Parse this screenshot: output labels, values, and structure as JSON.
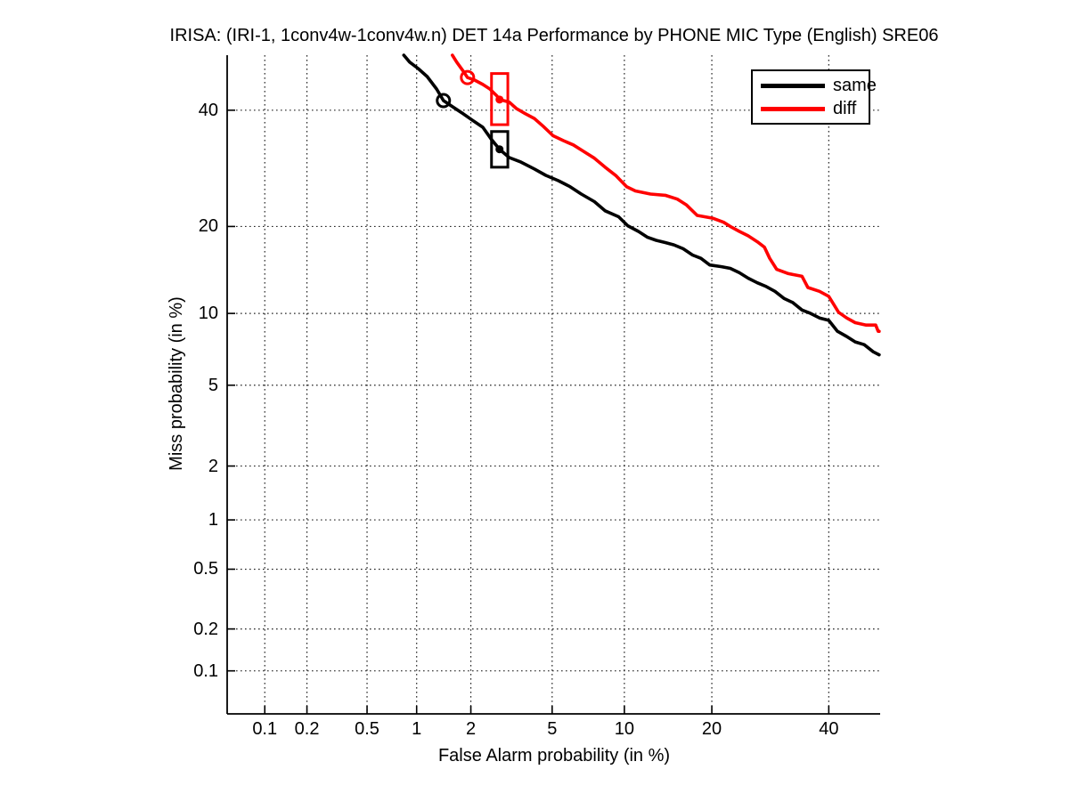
{
  "chart_data": {
    "type": "line",
    "variant": "DET-curve (probit-probit scale)",
    "title": "IRISA: (IRI-1, 1conv4w-1conv4w.n) DET 14a Performance by PHONE MIC Type (English) SRE06",
    "xlabel": "False Alarm probability (in %)",
    "ylabel": "Miss probability (in %)",
    "grid": true,
    "background": "#ffffff",
    "axis_color": "#000000",
    "grid_color": "#262626",
    "x_ticks": [
      0.1,
      0.2,
      0.5,
      1,
      2,
      5,
      10,
      20,
      40
    ],
    "x_tick_labels": [
      "0.1",
      "0.2",
      "0.5",
      "1",
      "2",
      "5",
      "10",
      "20",
      "40"
    ],
    "y_ticks": [
      0.1,
      0.2,
      0.5,
      1,
      2,
      5,
      10,
      20,
      40
    ],
    "y_tick_labels": [
      "0.1",
      "0.2",
      "0.5",
      "1",
      "2",
      "5",
      "10",
      "20",
      "40"
    ],
    "x_range": [
      0.052,
      50.2
    ],
    "y_range": [
      0.047,
      51.0
    ],
    "legend": {
      "position": "top-right",
      "entries": [
        {
          "label": "same",
          "color": "#000000"
        },
        {
          "label": "diff",
          "color": "#ff0000"
        }
      ]
    },
    "series": [
      {
        "name": "same",
        "color": "#000000",
        "fa": [
          0.84,
          0.91,
          1.02,
          1.15,
          1.3,
          1.42,
          1.59,
          1.82,
          2.03,
          2.31,
          2.56,
          2.81,
          3.14,
          3.58,
          4.14,
          4.68,
          5.33,
          6.0,
          6.7,
          7.6,
          8.4,
          9.5,
          10.3,
          11.3,
          12.2,
          13.1,
          14.1,
          15.1,
          16.2,
          17.4,
          18.5,
          19.7,
          21.4,
          22.7,
          24.1,
          25.5,
          27.0,
          28.5,
          30.0,
          31.6,
          33.2,
          34.9,
          36.5,
          38.2,
          40.0,
          41.7,
          43.5,
          45.2,
          47.0,
          48.8,
          50.0
        ],
        "miss": [
          51.0,
          49.6,
          48.3,
          46.7,
          44.2,
          41.9,
          40.7,
          39.3,
          38.1,
          36.7,
          34.4,
          32.6,
          31.1,
          30.3,
          29.1,
          28.0,
          27.1,
          26.1,
          24.9,
          23.7,
          22.3,
          21.4,
          20.1,
          19.3,
          18.5,
          18.1,
          17.8,
          17.5,
          17.0,
          16.2,
          15.8,
          15.0,
          14.8,
          14.6,
          14.1,
          13.5,
          13.0,
          12.6,
          12.1,
          11.4,
          11.0,
          10.3,
          10.0,
          9.6,
          9.4,
          8.5,
          8.1,
          7.7,
          7.5,
          7.0,
          6.8
        ]
      },
      {
        "name": "diff",
        "color": "#ff0000",
        "fa": [
          1.59,
          1.68,
          1.82,
          1.92,
          2.09,
          2.31,
          2.51,
          2.73,
          2.81,
          3.14,
          3.41,
          3.76,
          4.14,
          4.55,
          5.05,
          5.6,
          6.2,
          6.8,
          7.6,
          8.4,
          9.3,
          10.2,
          11.0,
          12.5,
          14.1,
          15.5,
          16.6,
          18.0,
          20.1,
          21.7,
          22.7,
          24.1,
          25.5,
          27.0,
          28.2,
          29.1,
          30.3,
          32.4,
          34.9,
          36.0,
          38.2,
          40.0,
          41.0,
          41.9,
          43.5,
          45.2,
          47.4,
          49.3,
          49.8,
          50.0
        ],
        "miss": [
          51.0,
          49.6,
          47.8,
          46.5,
          46.0,
          45.1,
          44.2,
          42.8,
          42.1,
          41.6,
          40.3,
          39.3,
          38.4,
          36.9,
          35.1,
          34.2,
          33.4,
          32.3,
          31.0,
          29.4,
          27.9,
          26.1,
          25.4,
          24.9,
          24.7,
          24.1,
          23.2,
          21.6,
          21.2,
          20.6,
          20.0,
          19.3,
          18.7,
          17.9,
          17.2,
          15.8,
          14.5,
          14.0,
          13.7,
          12.5,
          12.1,
          11.6,
          10.8,
          10.1,
          9.6,
          9.2,
          9.0,
          9.0,
          8.5,
          8.5
        ]
      }
    ],
    "markers": [
      {
        "series": "same",
        "shape": "open-circle",
        "fa": 1.42,
        "miss": 41.9
      },
      {
        "series": "diff",
        "shape": "open-circle",
        "fa": 1.92,
        "miss": 46.5
      },
      {
        "series": "same",
        "shape": "dot-in-box",
        "fa": 2.81,
        "miss": 32.6,
        "box_fa": [
          2.56,
          3.09
        ],
        "box_miss": [
          29.4,
          35.9
        ]
      },
      {
        "series": "diff",
        "shape": "dot-in-box",
        "fa": 2.81,
        "miss": 42.1,
        "box_fa": [
          2.56,
          3.09
        ],
        "box_miss": [
          37.2,
          47.3
        ]
      }
    ]
  }
}
